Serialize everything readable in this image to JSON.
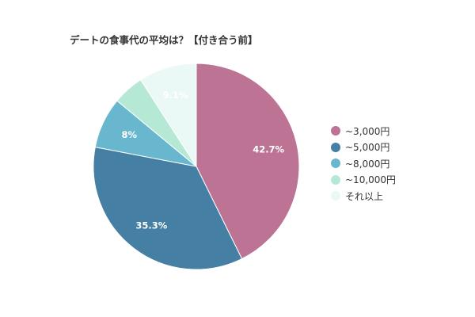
{
  "chart_data": {
    "type": "pie",
    "title": "デートの食事代の平均は？【付き合う前】",
    "categories": [
      "~3,000円",
      "~5,000円",
      "~8,000円",
      "~10,000円",
      "それ以上"
    ],
    "values": [
      42.7,
      35.3,
      8,
      4.9,
      9.1
    ],
    "data_labels": [
      "42.7%",
      "35.3%",
      "8%",
      "",
      "9.1%"
    ],
    "colors": [
      "#BC7394",
      "#457FA3",
      "#68B7CE",
      "#B5E8D5",
      "#EAF8F6"
    ],
    "legend_position": "right"
  }
}
